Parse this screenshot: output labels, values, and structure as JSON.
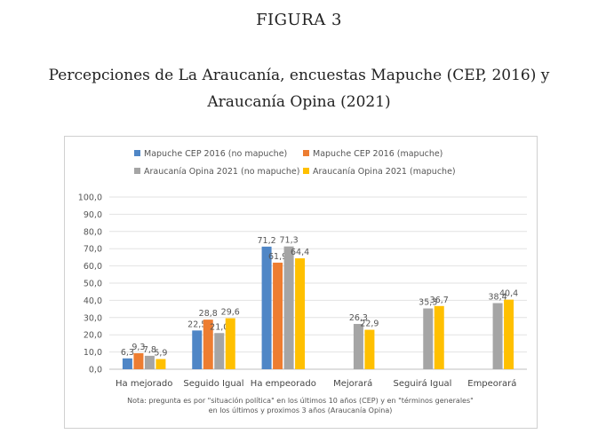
{
  "figure_label": "FIGURA 3",
  "figure_title": "Percepciones de La Araucanía, encuestas Mapuche (CEP, 2016) y Araucanía Opina (2021)",
  "chart_data": {
    "type": "bar",
    "categories": [
      "Ha mejorado",
      "Seguido Igual",
      "Ha empeorado",
      "Mejorará",
      "Seguirá Igual",
      "Empeorará"
    ],
    "series": [
      {
        "name": "Mapuche CEP 2016 (no mapuche)",
        "color": "#4f86c6",
        "values": [
          6.3,
          22.5,
          71.2,
          null,
          null,
          null
        ],
        "labels": [
          "6,3",
          "22,5",
          "71,2",
          null,
          null,
          null
        ]
      },
      {
        "name": "Mapuche CEP 2016 (mapuche)",
        "color": "#ed7d31",
        "values": [
          9.3,
          28.8,
          61.9,
          null,
          null,
          null
        ],
        "labels": [
          "9,3",
          "28,8",
          "61,9",
          null,
          null,
          null
        ]
      },
      {
        "name": "Araucanía Opina 2021 (no mapuche)",
        "color": "#a5a5a5",
        "values": [
          7.8,
          21.0,
          71.3,
          26.3,
          35.3,
          38.4
        ],
        "labels": [
          "7,8",
          "21,0",
          "71,3",
          "26,3",
          "35,3",
          "38,4"
        ]
      },
      {
        "name": "Araucanía Opina 2021 (mapuche)",
        "color": "#ffc000",
        "values": [
          5.9,
          29.6,
          64.4,
          22.9,
          36.7,
          40.4
        ],
        "labels": [
          "5,9",
          "29,6",
          "64,4",
          "22,9",
          "36,7",
          "40,4"
        ]
      }
    ],
    "yticks": [
      0,
      10,
      20,
      30,
      40,
      50,
      60,
      70,
      80,
      90,
      100
    ],
    "ytick_labels": [
      "0,0",
      "10,0",
      "20,0",
      "30,0",
      "40,0",
      "50,0",
      "60,0",
      "70,0",
      "80,0",
      "90,0",
      "100,0"
    ],
    "ylim": [
      0,
      100
    ],
    "grid": true,
    "legend_position": "top",
    "note_lines": [
      "Nota: pregunta es por \"situación política\" en los últimos 10 años (CEP) y en \"términos generales\"",
      "en los últimos y proximos 3 años (Araucanía Opina)"
    ]
  }
}
